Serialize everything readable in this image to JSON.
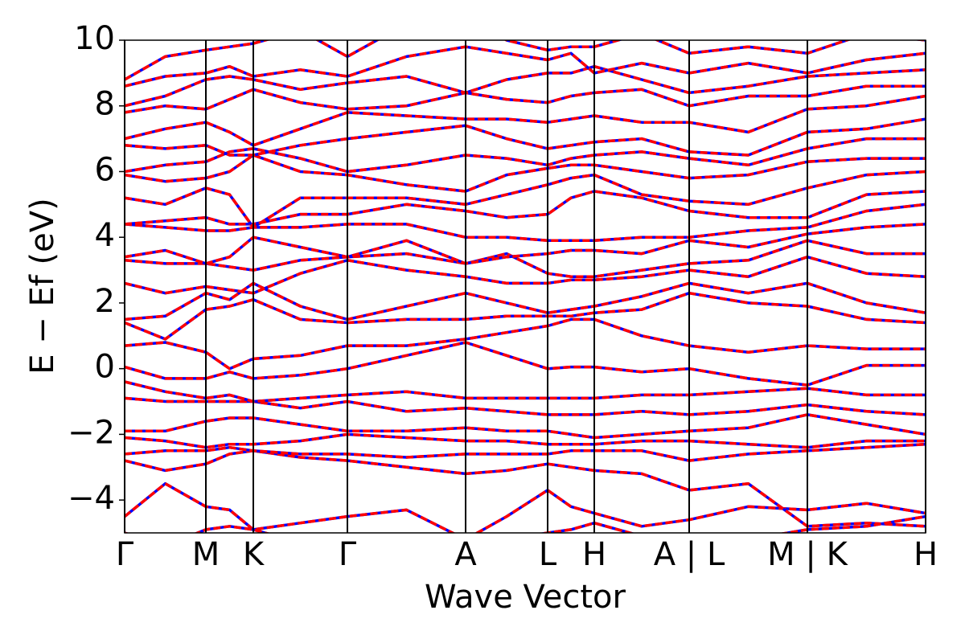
{
  "chart_data": {
    "type": "line",
    "xlabel": "Wave Vector",
    "ylabel": "E − Ef (eV)",
    "line_color": "#ff0000",
    "dash_color": "#0000ff",
    "xlim": [
      0,
      9.96
    ],
    "ylim": [
      -5,
      10
    ],
    "xticks": [
      {
        "value": 0,
        "label": "Γ"
      },
      {
        "value": 1.01,
        "label": "M"
      },
      {
        "value": 1.6,
        "label": "K"
      },
      {
        "value": 2.77,
        "label": "Γ"
      },
      {
        "value": 4.24,
        "label": "A"
      },
      {
        "value": 5.26,
        "label": "L"
      },
      {
        "value": 5.84,
        "label": "H"
      },
      {
        "value": 7.02,
        "label": "A | L"
      },
      {
        "value": 8.49,
        "label": "M | K"
      },
      {
        "value": 9.96,
        "label": "H"
      }
    ],
    "yticks": [
      {
        "value": -4,
        "label": "−4"
      },
      {
        "value": -2,
        "label": "−2"
      },
      0,
      2,
      4,
      6,
      8,
      10
    ],
    "x": [
      0,
      0.505,
      1.01,
      1.305,
      1.6,
      2.185,
      2.77,
      3.505,
      4.24,
      4.75,
      5.26,
      5.55,
      5.84,
      6.43,
      7.02,
      7.755,
      8.49,
      9.225,
      9.96
    ],
    "series": [
      {
        "values": [
          -4.5,
          -3.5,
          -4.2,
          -4.3,
          -4.9,
          -4.7,
          -4.5,
          -4.3,
          -5.2,
          -4.5,
          -3.7,
          -4.2,
          -4.4,
          -4.8,
          -4.6,
          -4.2,
          -4.3,
          -4.1,
          -4.4
        ]
      },
      {
        "values": [
          -2.8,
          -3.1,
          -2.9,
          -2.6,
          -2.5,
          -2.7,
          -2.8,
          -3.0,
          -3.2,
          -3.1,
          -2.9,
          -3.0,
          -3.1,
          -3.2,
          -3.7,
          -3.5,
          -4.8,
          -4.7,
          -4.8
        ]
      },
      {
        "values": [
          -2.6,
          -2.5,
          -2.5,
          -2.4,
          -2.5,
          -2.6,
          -2.6,
          -2.7,
          -2.6,
          -2.6,
          -2.6,
          -2.5,
          -2.5,
          -2.5,
          -2.8,
          -2.6,
          -2.5,
          -2.4,
          -2.3
        ]
      },
      {
        "values": [
          -2.1,
          -2.2,
          -2.4,
          -2.3,
          -2.3,
          -2.2,
          -2.0,
          -2.1,
          -2.2,
          -2.2,
          -2.3,
          -2.3,
          -2.3,
          -2.2,
          -2.2,
          -2.3,
          -2.4,
          -2.2,
          -2.2
        ]
      },
      {
        "values": [
          -1.9,
          -1.9,
          -1.6,
          -1.5,
          -1.5,
          -1.7,
          -1.9,
          -1.9,
          -1.8,
          -1.9,
          -1.9,
          -2.0,
          -2.1,
          -2.0,
          -1.9,
          -1.8,
          -1.4,
          -1.7,
          -2.0
        ]
      },
      {
        "values": [
          -0.9,
          -1.0,
          -1.0,
          -1.0,
          -1.0,
          -1.2,
          -1.0,
          -1.3,
          -1.2,
          -1.3,
          -1.4,
          -1.4,
          -1.4,
          -1.3,
          -1.4,
          -1.3,
          -1.1,
          -1.3,
          -1.4
        ]
      },
      {
        "values": [
          -0.4,
          -0.7,
          -0.9,
          -0.8,
          -1.0,
          -0.9,
          -0.8,
          -0.7,
          -0.9,
          -0.9,
          -0.9,
          -0.9,
          -0.9,
          -0.8,
          -0.8,
          -0.7,
          -0.6,
          -0.8,
          -0.8
        ]
      },
      {
        "values": [
          0.05,
          -0.3,
          -0.3,
          -0.1,
          -0.3,
          -0.2,
          0.0,
          0.4,
          0.8,
          0.4,
          0.0,
          0.05,
          0.05,
          -0.1,
          0.0,
          -0.3,
          -0.5,
          0.1,
          0.1
        ]
      },
      {
        "values": [
          0.7,
          0.8,
          0.5,
          0.0,
          0.3,
          0.4,
          0.7,
          0.7,
          0.9,
          1.1,
          1.3,
          1.5,
          1.5,
          1.0,
          0.7,
          0.5,
          0.7,
          0.6,
          0.6
        ]
      },
      {
        "values": [
          1.4,
          0.9,
          1.8,
          1.9,
          2.1,
          1.5,
          1.4,
          1.5,
          1.5,
          1.6,
          1.6,
          1.6,
          1.7,
          1.8,
          2.3,
          2.0,
          1.9,
          1.5,
          1.4
        ]
      },
      {
        "values": [
          1.5,
          1.6,
          2.3,
          2.1,
          2.6,
          1.9,
          1.5,
          1.9,
          2.3,
          2.0,
          1.7,
          1.8,
          1.9,
          2.2,
          2.6,
          2.3,
          2.6,
          2.0,
          1.7
        ]
      },
      {
        "values": [
          2.6,
          2.3,
          2.5,
          2.4,
          2.3,
          2.9,
          3.3,
          3.0,
          2.8,
          2.6,
          2.6,
          2.7,
          2.7,
          2.8,
          3.0,
          2.8,
          3.4,
          2.9,
          2.8
        ]
      },
      {
        "values": [
          3.3,
          3.2,
          3.2,
          3.1,
          3.0,
          3.3,
          3.4,
          3.5,
          3.2,
          3.5,
          2.9,
          2.8,
          2.8,
          3.0,
          3.2,
          3.3,
          3.9,
          3.5,
          3.5
        ]
      },
      {
        "values": [
          3.4,
          3.6,
          3.2,
          3.4,
          4.0,
          3.7,
          3.4,
          3.9,
          3.2,
          3.4,
          3.5,
          3.6,
          3.6,
          3.5,
          3.9,
          3.7,
          4.1,
          4.3,
          4.4
        ]
      },
      {
        "values": [
          4.4,
          4.3,
          4.2,
          4.2,
          4.3,
          4.3,
          4.4,
          4.4,
          4.0,
          4.0,
          3.9,
          3.9,
          3.9,
          4.0,
          4.0,
          4.2,
          4.3,
          4.8,
          5.0
        ]
      },
      {
        "values": [
          4.4,
          4.5,
          4.6,
          4.4,
          4.4,
          4.7,
          4.7,
          5.0,
          4.8,
          4.6,
          4.7,
          5.2,
          5.4,
          5.2,
          4.8,
          4.6,
          4.6,
          5.3,
          5.4
        ]
      },
      {
        "values": [
          5.2,
          5.0,
          5.5,
          5.3,
          4.3,
          5.2,
          5.2,
          5.2,
          5.0,
          5.3,
          5.6,
          5.8,
          5.9,
          5.3,
          5.1,
          5.0,
          5.5,
          5.9,
          6.0
        ]
      },
      {
        "values": [
          5.9,
          5.7,
          5.8,
          6.0,
          6.5,
          6.0,
          5.9,
          5.6,
          5.4,
          5.9,
          6.1,
          6.2,
          6.2,
          6.0,
          5.8,
          5.9,
          6.3,
          6.4,
          6.4
        ]
      },
      {
        "values": [
          6.0,
          6.2,
          6.3,
          6.6,
          6.7,
          6.4,
          6.0,
          6.2,
          6.5,
          6.4,
          6.2,
          6.4,
          6.5,
          6.6,
          6.4,
          6.2,
          6.7,
          7.0,
          7.0
        ]
      },
      {
        "values": [
          6.8,
          6.7,
          6.8,
          6.5,
          6.5,
          6.8,
          7.0,
          7.2,
          7.4,
          7.0,
          6.7,
          6.8,
          6.9,
          7.0,
          6.6,
          6.5,
          7.2,
          7.3,
          7.6
        ]
      },
      {
        "values": [
          7.0,
          7.3,
          7.5,
          7.2,
          6.8,
          7.3,
          7.8,
          7.7,
          7.6,
          7.6,
          7.5,
          7.6,
          7.7,
          7.5,
          7.5,
          7.2,
          7.9,
          8.0,
          8.3
        ]
      },
      {
        "values": [
          7.8,
          8.0,
          7.9,
          8.2,
          8.5,
          8.1,
          7.9,
          8.0,
          8.4,
          8.2,
          8.1,
          8.3,
          8.4,
          8.5,
          8.0,
          8.3,
          8.3,
          8.6,
          8.6
        ]
      },
      {
        "values": [
          8.0,
          8.3,
          8.8,
          8.9,
          8.8,
          8.5,
          8.7,
          8.9,
          8.4,
          8.8,
          9.0,
          9.0,
          9.2,
          8.8,
          8.4,
          8.6,
          8.9,
          9.0,
          9.1
        ]
      },
      {
        "values": [
          8.6,
          8.9,
          9.0,
          9.2,
          8.9,
          9.1,
          8.9,
          9.5,
          9.8,
          9.6,
          9.4,
          9.6,
          9.0,
          9.3,
          9.0,
          9.3,
          9.0,
          9.4,
          9.6
        ]
      },
      {
        "values": [
          8.8,
          9.5,
          9.7,
          9.8,
          9.9,
          10.3,
          9.5,
          10.5,
          10.8,
          10.0,
          9.7,
          9.8,
          9.8,
          10.2,
          9.6,
          9.8,
          9.6,
          10.2,
          10.0
        ]
      },
      {
        "values": [
          -5.0,
          -5.4,
          -4.9,
          -4.8,
          -4.9,
          -5.3,
          -5.5,
          -5.6,
          -5.4,
          -5.2,
          -5.0,
          -4.9,
          -4.7,
          -5.1,
          -5.3,
          -5.2,
          -4.9,
          -4.8,
          -4.5
        ]
      }
    ]
  }
}
